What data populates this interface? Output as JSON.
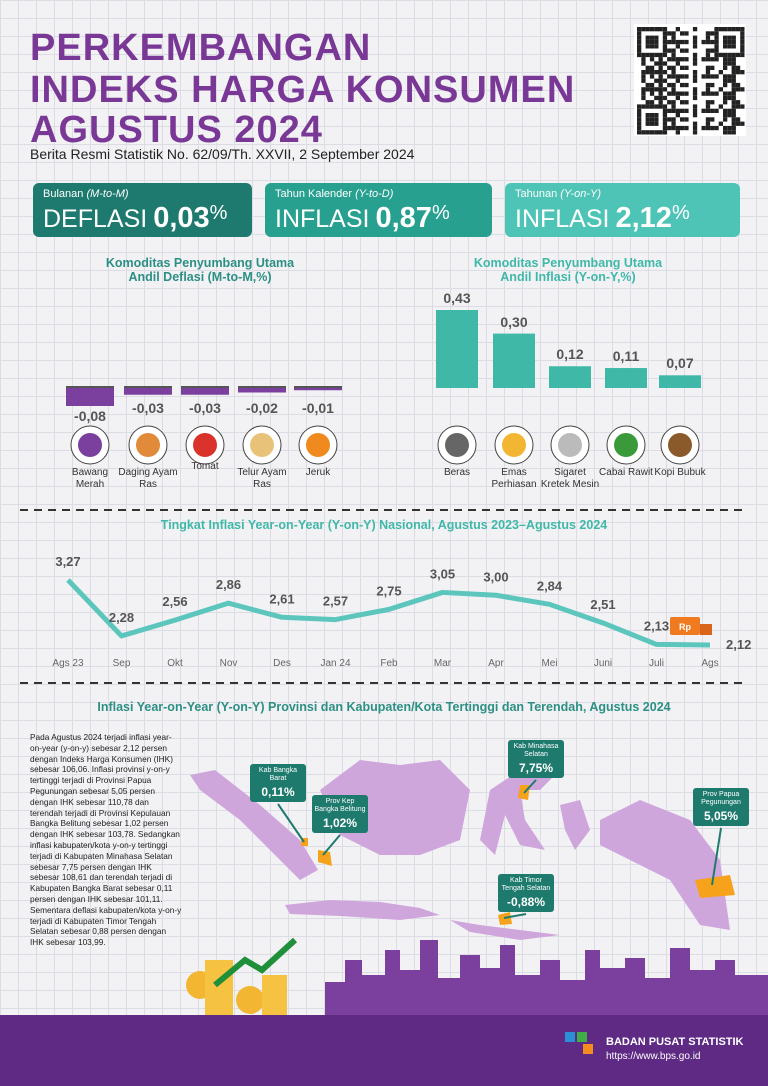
{
  "header": {
    "title_lines": [
      "PERKEMBANGAN",
      "INDEKS HARGA KONSUMEN",
      "AGUSTUS 2024"
    ],
    "subtitle": "Berita Resmi Statistik No. 62/09/Th. XXVII, 2 September 2024"
  },
  "summary_cards": [
    {
      "period": "Bulanan",
      "period_code": "(M-to-M)",
      "label": "DEFLASI",
      "value": "0,03",
      "unit": "%",
      "color": "#1e7a6e"
    },
    {
      "period": "Tahun Kalender",
      "period_code": "(Y-to-D)",
      "label": "INFLASI",
      "value": "0,87",
      "unit": "%",
      "color": "#27a090"
    },
    {
      "period": "Tahunan",
      "period_code": "(Y-on-Y)",
      "label": "INFLASI",
      "value": "2,12",
      "unit": "%",
      "color": "#4ec4b6"
    }
  ],
  "chart_data": [
    {
      "type": "bar",
      "title": "Komoditas Penyumbang Utama",
      "subtitle": "Andil Deflasi (M-to-M,%)",
      "categories": [
        "Bawang Merah",
        "Daging Ayam Ras",
        "Tomat",
        "Telur Ayam Ras",
        "Jeruk"
      ],
      "values": [
        -0.08,
        -0.03,
        -0.03,
        -0.02,
        -0.01
      ],
      "value_labels": [
        "-0,08",
        "-0,03",
        "-0,03",
        "-0,02",
        "-0,01"
      ],
      "color": "#7b3f9e"
    },
    {
      "type": "bar",
      "title": "Komoditas Penyumbang Utama",
      "subtitle": "Andil Inflasi (Y-on-Y,%)",
      "categories": [
        "Beras",
        "Emas Perhiasan",
        "Sigaret Kretek Mesin",
        "Cabai Rawit",
        "Kopi Bubuk"
      ],
      "values": [
        0.43,
        0.3,
        0.12,
        0.11,
        0.07
      ],
      "value_labels": [
        "0,43",
        "0,30",
        "0,12",
        "0,11",
        "0,07"
      ],
      "color": "#3fb8a8"
    },
    {
      "type": "line",
      "title": "Tingkat Inflasi Year-on-Year (Y-on-Y) Nasional, Agustus 2023–Agustus 2024",
      "categories": [
        "Ags 23",
        "Sep",
        "Okt",
        "Nov",
        "Des",
        "Jan 24",
        "Feb",
        "Mar",
        "Apr",
        "Mei",
        "Juni",
        "Juli",
        "Ags"
      ],
      "values": [
        3.27,
        2.28,
        2.56,
        2.86,
        2.61,
        2.57,
        2.75,
        3.05,
        3.0,
        2.84,
        2.51,
        2.13,
        2.12
      ],
      "value_labels": [
        "3,27",
        "2,28",
        "2,56",
        "2,86",
        "2,61",
        "2,57",
        "2,75",
        "3,05",
        "3,00",
        "2,84",
        "2,51",
        "2,13",
        "2,12"
      ],
      "color": "#5cc6bd",
      "annotation": "Rp"
    }
  ],
  "map_section": {
    "title": "Inflasi Year-on-Year (Y-on-Y) Provinsi dan Kabupaten/Kota Tertinggi dan Terendah, Agustus 2024",
    "paragraph": "Pada Agustus 2024 terjadi inflasi year-on-year (y-on-y) sebesar 2,12 persen dengan Indeks Harga Konsumen (IHK) sebesar 106,06. Inflasi provinsi y-on-y tertinggi terjadi di Provinsi Papua Pegunungan sebesar 5,05 persen dengan IHK sebesar 110,78 dan terendah terjadi di Provinsi Kepulauan Bangka Belitung sebesar 1,02 persen dengan IHK sebesar 103,78. Sedangkan inflasi kabupaten/kota y-on-y tertinggi terjadi di Kabupaten Minahasa Selatan sebesar 7,75 persen dengan IHK sebesar 108,61 dan terendah terjadi di Kabupaten Bangka Barat sebesar 0,11 persen dengan IHK sebesar 101,11. Sementara deflasi kabupaten/kota y-on-y terjadi di Kabupaten Timor Tengah Selatan sebesar 0,88 persen dengan IHK sebesar 103,99.",
    "callouts": [
      {
        "label": "Kab Bangka Barat",
        "value": "0,11%"
      },
      {
        "label": "Prov Kep Bangka Belitung",
        "value": "1,02%"
      },
      {
        "label": "Kab Minahasa Selatan",
        "value": "7,75%"
      },
      {
        "label": "Kab Timor Tengah Selatan",
        "value": "-0,88%"
      },
      {
        "label": "Prov Papua Pegunungan",
        "value": "5,05%"
      }
    ]
  },
  "footer": {
    "organization": "BADAN PUSAT STATISTIK",
    "url": "https://www.bps.go.id"
  }
}
